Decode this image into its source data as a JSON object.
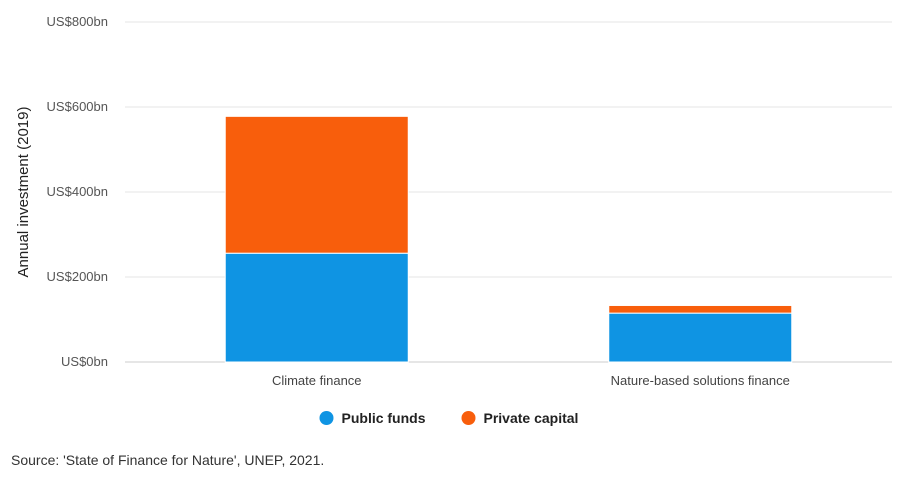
{
  "source_note": "Source: 'State of Finance for Nature', UNEP, 2021.",
  "chart_data": {
    "type": "bar",
    "stacked": true,
    "categories": [
      "Climate finance",
      "Nature-based solutions finance"
    ],
    "series": [
      {
        "name": "Public funds",
        "values": [
          256,
          115
        ],
        "color": "#0f94e3"
      },
      {
        "name": "Private capital",
        "values": [
          322,
          18
        ],
        "color": "#f85e0c"
      }
    ],
    "ylabel": "Annual investment (2019)",
    "ylim": [
      0,
      800
    ],
    "yticks": [
      0,
      200,
      400,
      600,
      800
    ],
    "ytick_labels": [
      "US$0bn",
      "US$200bn",
      "US$400bn",
      "US$600bn",
      "US$800bn"
    ],
    "grid": true,
    "legend_position": "bottom-center"
  }
}
